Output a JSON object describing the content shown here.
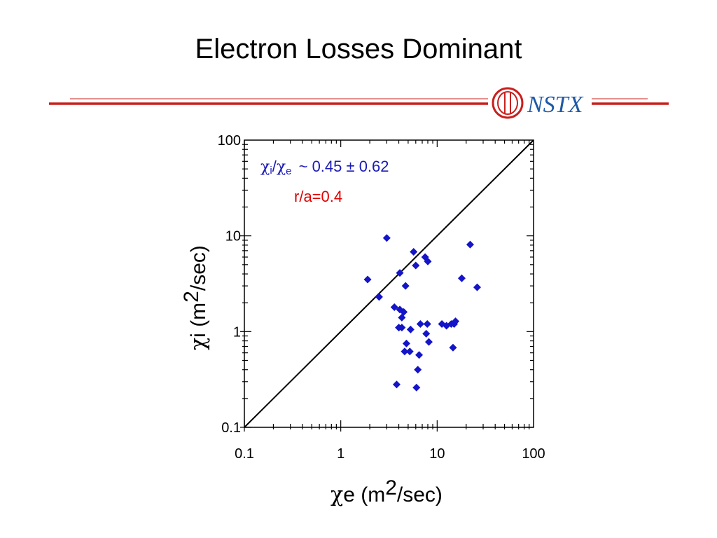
{
  "slide": {
    "title": "Electron Losses Dominant",
    "logo_text": "NSTX",
    "header_color": "#c8201e"
  },
  "chart_data": {
    "type": "scatter",
    "xscale": "log",
    "yscale": "log",
    "xlim": [
      0.1,
      100
    ],
    "ylim": [
      0.1,
      100
    ],
    "x_ticks": [
      "0.1",
      "1",
      "10",
      "100"
    ],
    "y_ticks": [
      "0.1",
      "1",
      "10",
      "100"
    ],
    "xlabel": {
      "symbol": "χ",
      "sub": "e",
      "unit_pre": " (m",
      "sup": "2",
      "unit_post": "/sec)"
    },
    "ylabel": {
      "symbol": "χ",
      "sub": "i",
      "unit_pre": " (m",
      "sup": "2",
      "unit_post": "/sec)"
    },
    "annotations": [
      {
        "chi1": "χ",
        "sub1": "i",
        "slash": "/",
        "chi2": "χ",
        "sub2": "e",
        "rest": " ~ 0.45 ± 0.62",
        "color": "#1a1ab8"
      },
      {
        "text": "r/a=0.4",
        "color": "#e00000"
      }
    ],
    "reference_line": {
      "label": "",
      "from": [
        0.1,
        0.1
      ],
      "to": [
        100,
        100
      ]
    },
    "marker_color": "#1414c8",
    "marker": "diamond",
    "points": [
      [
        1.9,
        3.5
      ],
      [
        2.5,
        2.3
      ],
      [
        3.0,
        9.5
      ],
      [
        3.6,
        1.8
      ],
      [
        3.8,
        0.28
      ],
      [
        4.0,
        1.1
      ],
      [
        4.1,
        4.1
      ],
      [
        4.1,
        1.7
      ],
      [
        4.3,
        1.1
      ],
      [
        4.3,
        1.4
      ],
      [
        4.5,
        1.6
      ],
      [
        4.6,
        0.62
      ],
      [
        4.7,
        3.0
      ],
      [
        4.8,
        0.75
      ],
      [
        5.2,
        0.62
      ],
      [
        5.3,
        1.05
      ],
      [
        5.7,
        6.8
      ],
      [
        6.0,
        4.9
      ],
      [
        6.1,
        0.26
      ],
      [
        6.3,
        0.4
      ],
      [
        6.5,
        0.57
      ],
      [
        6.7,
        1.2
      ],
      [
        7.5,
        6.0
      ],
      [
        7.7,
        0.95
      ],
      [
        7.9,
        1.2
      ],
      [
        8.0,
        5.4
      ],
      [
        8.2,
        0.78
      ],
      [
        11.2,
        1.2
      ],
      [
        12.5,
        1.15
      ],
      [
        14.0,
        1.2
      ],
      [
        14.6,
        0.68
      ],
      [
        15.0,
        1.2
      ],
      [
        15.5,
        1.28
      ],
      [
        18.0,
        3.6
      ],
      [
        22.0,
        8.1
      ],
      [
        26.0,
        2.9
      ]
    ]
  }
}
